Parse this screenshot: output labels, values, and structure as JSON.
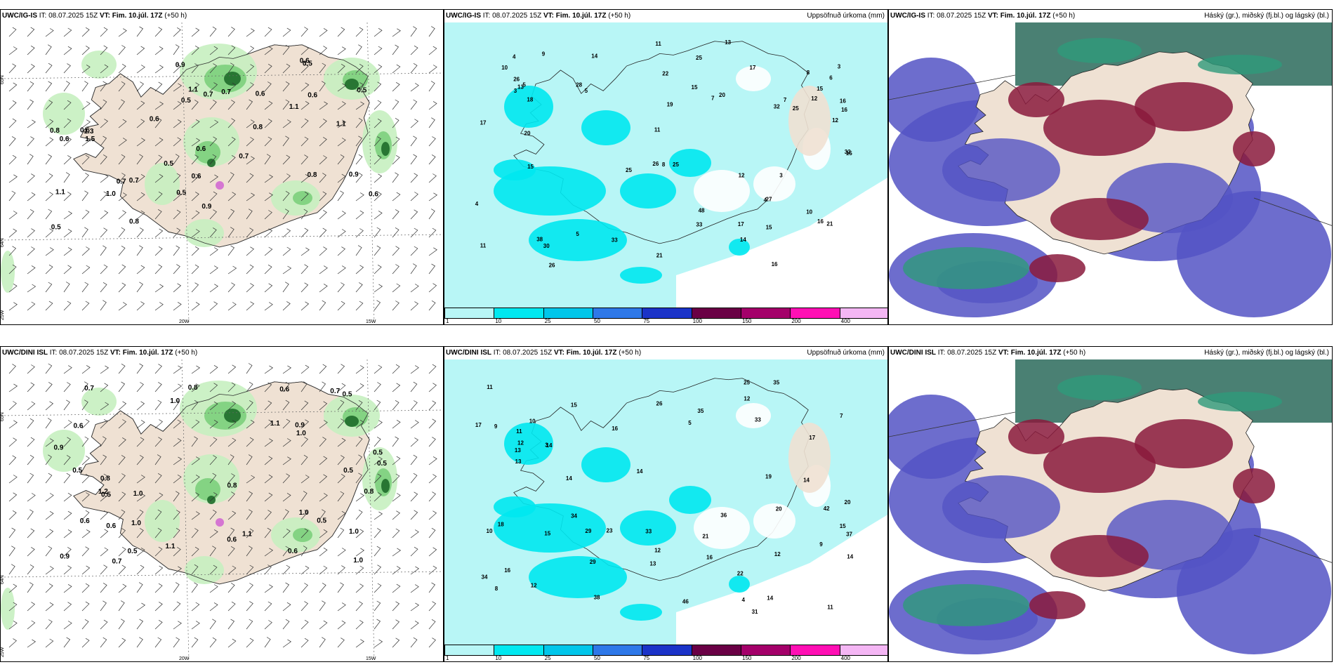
{
  "rows": [
    {
      "model": "UWC/IG-IS",
      "it_label": "IT:",
      "it": "08.07.2025 15Z",
      "vt_label": "VT:",
      "vt": "Fim. 10.júl. 17Z",
      "lead": "(+50 h)"
    },
    {
      "model": "UWC/DINI ISL",
      "it_label": "IT:",
      "it": "08.07.2025 15Z",
      "vt_label": "VT:",
      "vt": "Fim. 10.júl. 17Z",
      "lead": "(+50 h)"
    }
  ],
  "precip_title": "Uppsöfnuð úrkoma (mm)",
  "cloud_title": "Háský (gr.), miðský (fj.bl.) og lágský (bl.)",
  "colorbar": {
    "labels": [
      "1",
      "10",
      "25",
      "50",
      "75",
      "100",
      "150",
      "200",
      "400"
    ],
    "colors": [
      "#b8f6f6",
      "#00e8f0",
      "#00c6ea",
      "#2e78e8",
      "#1b33c8",
      "#6a0045",
      "#a4006a",
      "#ff0fb4",
      "#f4b6f4"
    ]
  },
  "axes": {
    "lat_labels": [
      "65N",
      "64N",
      "25W"
    ],
    "lon_labels": [
      "20W",
      "15W"
    ]
  },
  "colors": {
    "land": "#efe1d3",
    "precip_light": "#b8f6f6",
    "precip_mid": "#00e8f0",
    "green_light": "#c6efc0",
    "green_mid": "#7ccf7c",
    "green_dark": "#1e6b2a",
    "cloud_blue": "#5454c4",
    "cloud_red": "#8a1a3c",
    "cloud_green": "#2e9a7a"
  },
  "wind_values_top": [
    "0.7",
    "0.6",
    "0.8",
    "0.9",
    "1.5",
    "1.1",
    "0.8",
    "0.7",
    "1.3",
    "0.6",
    "0.5",
    "0.8",
    "1.1",
    "0.6",
    "0.6",
    "1.1",
    "0.6",
    "0.5",
    "0.6",
    "0.5",
    "0.6",
    "0.9",
    "1.1",
    "0.5",
    "1.0",
    "0.7",
    "0.5",
    "0.6",
    "0.9",
    "0.7",
    "0.5",
    "0.6",
    "0.8",
    "0.7"
  ],
  "wind_values_bottom": [
    "0.7",
    "0.5",
    "0.6",
    "0.8",
    "0.9",
    "0.6",
    "0.5",
    "1.1",
    "0.5",
    "0.6",
    "0.6",
    "1.0",
    "0.5",
    "0.8",
    "0.7",
    "0.9",
    "1.0",
    "0.7",
    "0.6",
    "1.0",
    "1.1",
    "1.0",
    "0.5",
    "1.0",
    "0.6",
    "0.9",
    "1.2",
    "0.8",
    "0.5",
    "1.0",
    "0.8",
    "1.1",
    "1.0",
    "0.5",
    "0.5"
  ],
  "precip_values_top": [
    "4",
    "7",
    "6",
    "5",
    "4",
    "5",
    "3",
    "3",
    "21",
    "32",
    "11",
    "16",
    "18",
    "19",
    "10",
    "7",
    "27",
    "17",
    "15",
    "20",
    "32",
    "15",
    "21",
    "25",
    "33",
    "22",
    "12",
    "11",
    "38",
    "48",
    "25",
    "28",
    "25",
    "17",
    "15",
    "16",
    "26",
    "13",
    "14",
    "30",
    "25",
    "26",
    "33",
    "14",
    "16",
    "20",
    "15",
    "12",
    "12",
    "17",
    "26",
    "10",
    "9",
    "8",
    "3",
    "4",
    "8",
    "5",
    "16",
    "13",
    "11",
    "15"
  ],
  "precip_values_bottom": [
    "4",
    "26",
    "13",
    "15",
    "12",
    "35",
    "19",
    "20",
    "17",
    "33",
    "14",
    "16",
    "23",
    "33",
    "25",
    "12",
    "10",
    "11",
    "12",
    "37",
    "16",
    "36",
    "42",
    "46",
    "31",
    "15",
    "15",
    "22",
    "13",
    "18",
    "14",
    "34",
    "29",
    "35",
    "34",
    "38",
    "14",
    "12",
    "14",
    "17",
    "11",
    "20",
    "16",
    "14",
    "29",
    "21",
    "13",
    "12",
    "8",
    "7",
    "5",
    "9",
    "10",
    "3",
    "11",
    "14",
    "9"
  ]
}
